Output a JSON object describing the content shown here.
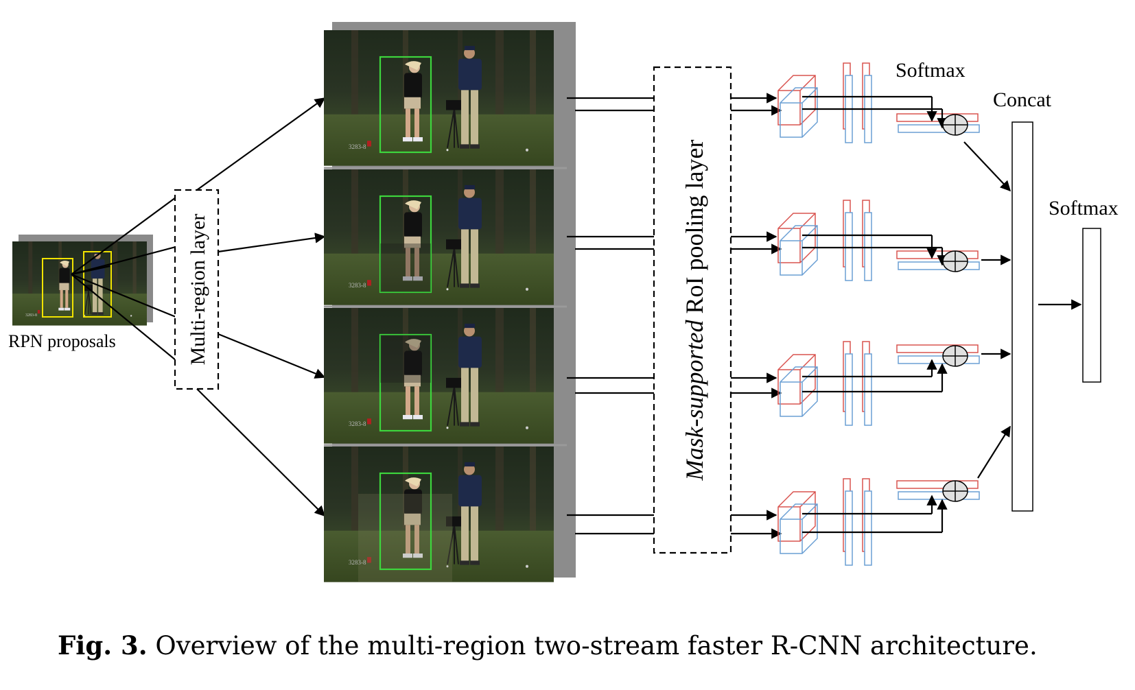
{
  "labels": {
    "rpn_proposals": "RPN proposals",
    "multi_region_layer": "Multi-region layer",
    "roi_pooling_italic": "Mask-supported",
    "roi_pooling_regular": " RoI pooling layer",
    "softmax_top": "Softmax",
    "concat": "Concat",
    "softmax_final": "Softmax"
  },
  "caption": {
    "label": "Fig. 3.",
    "text": " Overview of the multi-region two-stream faster R-CNN architecture."
  },
  "frame_badges": [
    "3283-8",
    "3283-8",
    "3283-8",
    "3283-8"
  ],
  "proposal_badge": "3283-8",
  "colors": {
    "stream_red": "#d9534f",
    "stream_blue": "#6a9fd4",
    "box_green": "#3dd63d",
    "box_yellow": "#f2e400",
    "line": "#000000"
  }
}
